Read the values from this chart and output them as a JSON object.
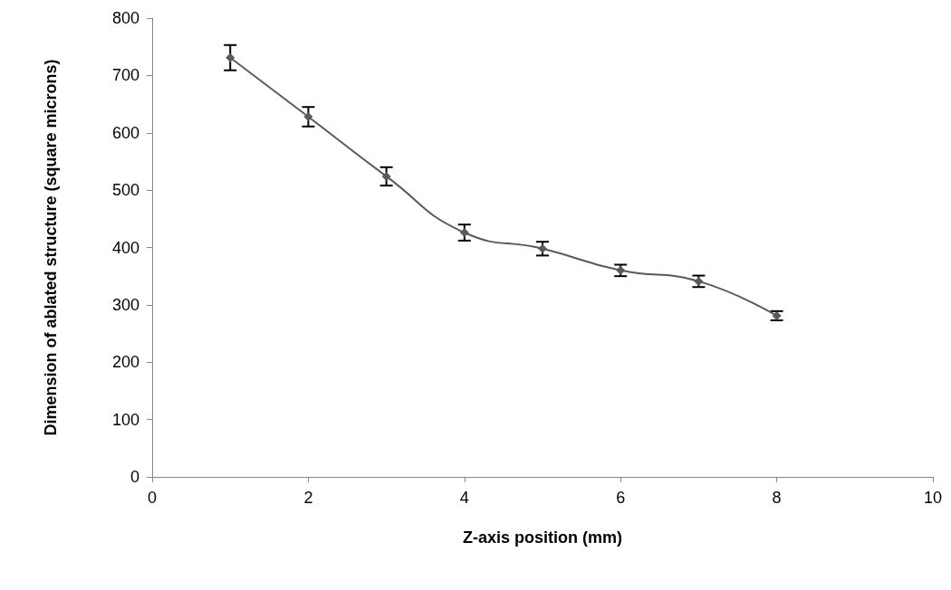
{
  "chart_data": {
    "type": "line",
    "xlabel": "Z-axis position (mm)",
    "ylabel": "Dimension of ablated structure (square microns)",
    "x": [
      1,
      2,
      3,
      4,
      5,
      6,
      7,
      8
    ],
    "series": [
      {
        "color": "#595959",
        "values": [
          731,
          628,
          524,
          426,
          398,
          360,
          341,
          281
        ],
        "errors": [
          22,
          17,
          16,
          14,
          12,
          10,
          10,
          8
        ]
      }
    ],
    "xlim": [
      0,
      10
    ],
    "xticks": [
      0,
      2,
      4,
      6,
      8,
      10
    ],
    "ylim": [
      0,
      800
    ],
    "yticks": [
      0,
      100,
      200,
      300,
      400,
      500,
      600,
      700,
      800
    ],
    "grid": false,
    "marker": "diamond",
    "line_style": "solid"
  }
}
